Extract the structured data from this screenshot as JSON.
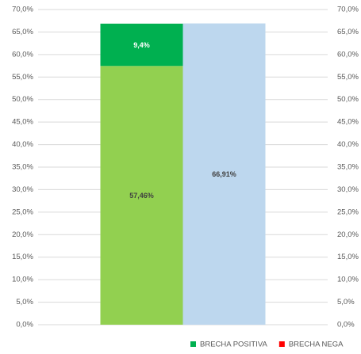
{
  "chart_data": {
    "type": "bar",
    "stacked": true,
    "categories": [
      null,
      null
    ],
    "series": [
      {
        "color": "#92d050",
        "values": [
          57.46,
          null
        ],
        "value_labels": [
          "57,46%",
          null
        ]
      },
      {
        "color": "#bdd7ee",
        "values": [
          null,
          66.91
        ],
        "value_labels": [
          null,
          "66,91%"
        ]
      },
      {
        "name": "BRECHA POSITIVA",
        "color": "#00b050",
        "values": [
          9.4,
          null
        ],
        "value_labels": [
          "9,4%",
          null
        ]
      },
      {
        "name": "BRECHA NEGA",
        "color": "#ff0000",
        "values": [
          null,
          null
        ]
      }
    ],
    "ylim": [
      0,
      70
    ],
    "yticks": [
      {
        "value": 0,
        "label": "0,0%"
      },
      {
        "value": 5,
        "label": "5,0%"
      },
      {
        "value": 10,
        "label": "10,0%"
      },
      {
        "value": 15,
        "label": "15,0%"
      },
      {
        "value": 20,
        "label": "20,0%"
      },
      {
        "value": 25,
        "label": "25,0%"
      },
      {
        "value": 30,
        "label": "30,0%"
      },
      {
        "value": 35,
        "label": "35,0%"
      },
      {
        "value": 40,
        "label": "40,0%"
      },
      {
        "value": 45,
        "label": "45,0%"
      },
      {
        "value": 50,
        "label": "50,0%"
      },
      {
        "value": 55,
        "label": "55,0%"
      },
      {
        "value": 60,
        "label": "60,0%"
      },
      {
        "value": 65,
        "label": "65,0%"
      },
      {
        "value": 70,
        "label": "70,0%"
      }
    ],
    "y2lim": [
      0,
      70
    ],
    "y2ticks": [
      {
        "value": 0,
        "label": "0,0%"
      },
      {
        "value": 5,
        "label": "5,0%"
      },
      {
        "value": 10,
        "label": "10,0%"
      },
      {
        "value": 15,
        "label": "15,0%"
      },
      {
        "value": 20,
        "label": "20,0%"
      },
      {
        "value": 25,
        "label": "25,0%"
      },
      {
        "value": 30,
        "label": "30,0%"
      },
      {
        "value": 35,
        "label": "35,0%"
      },
      {
        "value": 40,
        "label": "40,0%"
      },
      {
        "value": 45,
        "label": "45,0%"
      },
      {
        "value": 50,
        "label": "50,0%"
      },
      {
        "value": 55,
        "label": "55,0%"
      },
      {
        "value": 60,
        "label": "60,0%"
      },
      {
        "value": 65,
        "label": "65,0%"
      },
      {
        "value": 70,
        "label": "70,0%"
      }
    ],
    "grid": true,
    "legend": "bottom-right"
  }
}
